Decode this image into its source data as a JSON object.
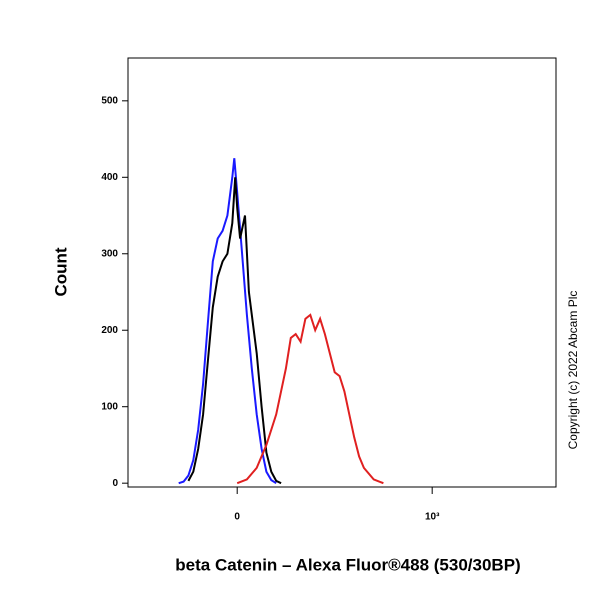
{
  "chart_data": {
    "type": "line",
    "x_label": "beta Catenin – Alexa Fluor®488 (530/30BP)",
    "y_label": "Count",
    "annotation": "Copyright (c) 2022 Abcam Plc",
    "xlim": [
      -560,
      1635
    ],
    "ylim": [
      -5,
      556
    ],
    "xticks": [
      {
        "value": 0,
        "label": "0"
      },
      {
        "value": 1000,
        "label": "10³"
      }
    ],
    "yticks": [
      0,
      100,
      200,
      300,
      400,
      500
    ],
    "series": [
      {
        "color": "#1a1aff",
        "x": [
          -300,
          -275,
          -250,
          -225,
          -200,
          -175,
          -150,
          -125,
          -100,
          -75,
          -50,
          -25,
          -15,
          0,
          25,
          50,
          75,
          100,
          125,
          150,
          175,
          200
        ],
        "values": [
          0,
          2,
          10,
          30,
          70,
          130,
          210,
          290,
          320,
          330,
          350,
          400,
          425,
          380,
          300,
          220,
          150,
          90,
          45,
          15,
          4,
          0
        ]
      },
      {
        "color": "#000000",
        "x": [
          -250,
          -225,
          -200,
          -175,
          -150,
          -125,
          -100,
          -75,
          -50,
          -25,
          -10,
          0,
          15,
          40,
          60,
          80,
          100,
          125,
          150,
          175,
          200,
          225
        ],
        "values": [
          3,
          15,
          45,
          90,
          160,
          230,
          270,
          290,
          300,
          340,
          400,
          360,
          320,
          350,
          250,
          210,
          170,
          100,
          40,
          15,
          3,
          0
        ]
      },
      {
        "color": "#e02020",
        "x": [
          0,
          50,
          100,
          150,
          200,
          250,
          275,
          300,
          325,
          350,
          375,
          400,
          425,
          450,
          475,
          500,
          525,
          550,
          575,
          600,
          625,
          650,
          700,
          750
        ],
        "values": [
          0,
          5,
          20,
          50,
          90,
          150,
          190,
          195,
          185,
          215,
          220,
          200,
          215,
          195,
          170,
          145,
          140,
          120,
          90,
          60,
          35,
          20,
          5,
          0
        ]
      }
    ]
  }
}
